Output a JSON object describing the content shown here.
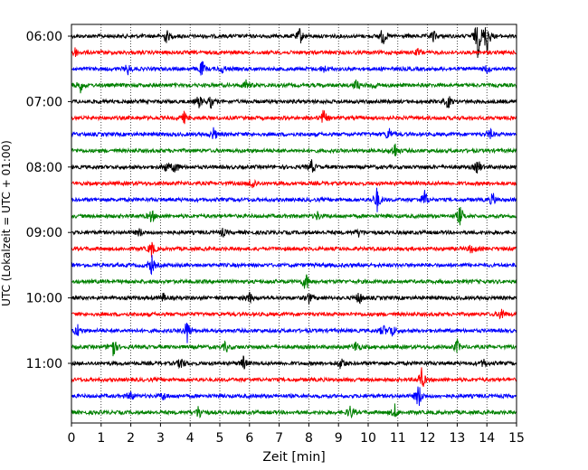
{
  "chart_data": {
    "type": "line",
    "title": "",
    "xlabel": "Zeit  [min]",
    "ylabel": "UTC (Lokalzeit = UTC + 01:00)",
    "xlim": [
      0,
      15
    ],
    "x_ticks": [
      "0",
      "1",
      "2",
      "3",
      "4",
      "5",
      "6",
      "7",
      "8",
      "9",
      "10",
      "11",
      "12",
      "13",
      "14",
      "15"
    ],
    "y_ticks": [
      "06:00",
      "07:00",
      "08:00",
      "09:00",
      "10:00",
      "11:00"
    ],
    "grid_x": true,
    "trace_interval_min": 15,
    "color_cycle": [
      "#000000",
      "#ff0000",
      "#0000ff",
      "#008000"
    ],
    "traces": [
      {
        "start": "06:00",
        "events": [
          [
            3.2,
            0.5
          ],
          [
            7.7,
            0.6
          ],
          [
            10.5,
            0.7
          ],
          [
            12.2,
            0.4
          ],
          [
            13.7,
            1.6
          ],
          [
            14.0,
            1.4
          ]
        ]
      },
      {
        "start": "06:15",
        "events": [
          [
            0.1,
            0.4
          ],
          [
            11.7,
            0.3
          ]
        ]
      },
      {
        "start": "06:30",
        "events": [
          [
            1.9,
            0.4
          ],
          [
            4.4,
            0.6
          ],
          [
            5.1,
            0.3
          ],
          [
            8.5,
            0.3
          ],
          [
            14.0,
            0.3
          ]
        ]
      },
      {
        "start": "06:45",
        "events": [
          [
            0.3,
            0.5
          ],
          [
            5.9,
            0.4
          ],
          [
            9.6,
            0.4
          ],
          [
            10.2,
            0.3
          ]
        ]
      },
      {
        "start": "07:00",
        "events": [
          [
            4.3,
            0.5
          ],
          [
            4.7,
            0.4
          ],
          [
            12.7,
            0.5
          ]
        ]
      },
      {
        "start": "07:15",
        "events": [
          [
            3.8,
            0.4
          ],
          [
            8.5,
            0.6
          ]
        ]
      },
      {
        "start": "07:30",
        "events": [
          [
            4.8,
            0.5
          ],
          [
            10.7,
            0.5
          ],
          [
            14.1,
            0.4
          ]
        ]
      },
      {
        "start": "07:45",
        "events": [
          [
            10.9,
            0.6
          ]
        ]
      },
      {
        "start": "08:00",
        "events": [
          [
            3.2,
            0.4
          ],
          [
            3.5,
            0.5
          ],
          [
            8.1,
            0.5
          ],
          [
            13.7,
            0.6
          ]
        ]
      },
      {
        "start": "08:15",
        "events": [
          [
            6.1,
            0.5
          ]
        ]
      },
      {
        "start": "08:30",
        "events": [
          [
            10.3,
            0.9
          ],
          [
            11.9,
            0.7
          ],
          [
            14.2,
            0.5
          ]
        ]
      },
      {
        "start": "08:45",
        "events": [
          [
            2.7,
            0.5
          ],
          [
            8.3,
            0.3
          ],
          [
            13.1,
            0.8
          ]
        ]
      },
      {
        "start": "09:00",
        "events": [
          [
            2.3,
            0.3
          ],
          [
            5.1,
            0.3
          ],
          [
            9.7,
            0.3
          ]
        ]
      },
      {
        "start": "09:15",
        "events": [
          [
            2.7,
            0.6
          ],
          [
            13.5,
            0.4
          ]
        ]
      },
      {
        "start": "09:30",
        "events": [
          [
            2.7,
            0.7
          ]
        ]
      },
      {
        "start": "09:45",
        "events": [
          [
            7.9,
            0.8
          ]
        ]
      },
      {
        "start": "10:00",
        "events": [
          [
            3.1,
            0.3
          ],
          [
            6.0,
            0.4
          ],
          [
            8.0,
            0.4
          ],
          [
            9.7,
            0.5
          ]
        ]
      },
      {
        "start": "10:15",
        "events": [
          [
            14.5,
            0.5
          ]
        ]
      },
      {
        "start": "10:30",
        "events": [
          [
            0.2,
            0.5
          ],
          [
            3.9,
            0.9
          ],
          [
            10.5,
            0.4
          ],
          [
            10.8,
            0.5
          ]
        ]
      },
      {
        "start": "10:45",
        "events": [
          [
            1.4,
            0.9
          ],
          [
            5.2,
            0.4
          ],
          [
            9.6,
            0.5
          ],
          [
            13.0,
            0.5
          ]
        ]
      },
      {
        "start": "11:00",
        "events": [
          [
            3.7,
            0.5
          ],
          [
            5.8,
            0.5
          ],
          [
            9.1,
            0.5
          ],
          [
            13.9,
            0.3
          ]
        ]
      },
      {
        "start": "11:15",
        "events": [
          [
            11.8,
            0.9
          ]
        ]
      },
      {
        "start": "11:30",
        "events": [
          [
            2.0,
            0.4
          ],
          [
            3.1,
            0.3
          ],
          [
            11.7,
            1.0
          ]
        ]
      },
      {
        "start": "11:45",
        "events": [
          [
            4.3,
            0.6
          ],
          [
            9.4,
            0.5
          ],
          [
            10.9,
            0.5
          ]
        ]
      }
    ]
  }
}
